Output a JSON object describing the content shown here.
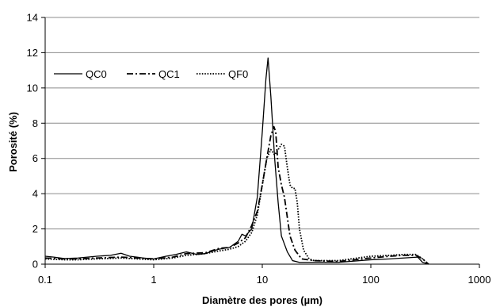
{
  "chart_data": {
    "type": "line",
    "xlabel": "Diamètre des pores (µm)",
    "ylabel": "Porosité (%)",
    "x_scale": "log",
    "xlim": [
      0.1,
      1000
    ],
    "ylim": [
      0,
      14
    ],
    "x_ticks": [
      "0.1",
      "1",
      "10",
      "100",
      "1000"
    ],
    "y_ticks": [
      "0",
      "2",
      "4",
      "6",
      "8",
      "10",
      "12",
      "14"
    ],
    "grid": "horizontal",
    "legend_position": "top-left",
    "series": [
      {
        "name": "QC0",
        "style": "solid",
        "color": "#000000",
        "points": [
          [
            0.1,
            0.45
          ],
          [
            0.12,
            0.4
          ],
          [
            0.15,
            0.32
          ],
          [
            0.2,
            0.35
          ],
          [
            0.3,
            0.45
          ],
          [
            0.4,
            0.5
          ],
          [
            0.5,
            0.62
          ],
          [
            0.6,
            0.45
          ],
          [
            0.7,
            0.4
          ],
          [
            0.8,
            0.35
          ],
          [
            1,
            0.3
          ],
          [
            1.3,
            0.45
          ],
          [
            1.6,
            0.55
          ],
          [
            2,
            0.7
          ],
          [
            2.5,
            0.55
          ],
          [
            3,
            0.6
          ],
          [
            3.5,
            0.75
          ],
          [
            4,
            0.85
          ],
          [
            5,
            0.95
          ],
          [
            6,
            1.3
          ],
          [
            6.5,
            1.7
          ],
          [
            7,
            1.6
          ],
          [
            8,
            2.0
          ],
          [
            9,
            3.8
          ],
          [
            10,
            7.5
          ],
          [
            10.8,
            10.5
          ],
          [
            11.3,
            11.7
          ],
          [
            12,
            9.5
          ],
          [
            13,
            6.0
          ],
          [
            14,
            3.5
          ],
          [
            15,
            1.6
          ],
          [
            17,
            0.7
          ],
          [
            19,
            0.2
          ],
          [
            22,
            0.1
          ],
          [
            30,
            0.1
          ],
          [
            50,
            0.1
          ],
          [
            100,
            0.25
          ],
          [
            150,
            0.3
          ],
          [
            200,
            0.35
          ],
          [
            270,
            0.4
          ],
          [
            300,
            0.1
          ],
          [
            340,
            0
          ]
        ]
      },
      {
        "name": "QC1",
        "style": "dashdot",
        "color": "#000000",
        "points": [
          [
            0.1,
            0.35
          ],
          [
            0.15,
            0.3
          ],
          [
            0.2,
            0.3
          ],
          [
            0.3,
            0.35
          ],
          [
            0.5,
            0.4
          ],
          [
            0.7,
            0.35
          ],
          [
            1,
            0.3
          ],
          [
            1.5,
            0.4
          ],
          [
            2,
            0.6
          ],
          [
            3,
            0.65
          ],
          [
            4,
            0.9
          ],
          [
            5,
            0.95
          ],
          [
            6,
            1.2
          ],
          [
            7,
            1.5
          ],
          [
            8,
            2.2
          ],
          [
            9,
            3.0
          ],
          [
            10,
            4.5
          ],
          [
            11,
            6.0
          ],
          [
            12,
            7.3
          ],
          [
            12.8,
            7.8
          ],
          [
            13.3,
            7.5
          ],
          [
            14,
            5.5
          ],
          [
            15,
            4.5
          ],
          [
            16,
            3.8
          ],
          [
            18,
            1.6
          ],
          [
            20,
            0.8
          ],
          [
            23,
            0.3
          ],
          [
            30,
            0.2
          ],
          [
            50,
            0.15
          ],
          [
            100,
            0.35
          ],
          [
            150,
            0.45
          ],
          [
            200,
            0.5
          ],
          [
            260,
            0.5
          ],
          [
            300,
            0.3
          ],
          [
            340,
            0
          ]
        ]
      },
      {
        "name": "QF0",
        "style": "dotted",
        "color": "#000000",
        "points": [
          [
            0.1,
            0.3
          ],
          [
            0.15,
            0.25
          ],
          [
            0.2,
            0.25
          ],
          [
            0.3,
            0.3
          ],
          [
            0.5,
            0.35
          ],
          [
            0.7,
            0.3
          ],
          [
            1,
            0.25
          ],
          [
            1.5,
            0.35
          ],
          [
            2,
            0.5
          ],
          [
            3,
            0.6
          ],
          [
            4,
            0.75
          ],
          [
            5,
            0.85
          ],
          [
            6,
            1.0
          ],
          [
            7,
            1.3
          ],
          [
            8,
            1.8
          ],
          [
            9,
            2.8
          ],
          [
            10,
            4.5
          ],
          [
            11,
            6.0
          ],
          [
            12,
            6.5
          ],
          [
            13,
            6.2
          ],
          [
            14,
            6.5
          ],
          [
            15,
            6.8
          ],
          [
            16,
            6.7
          ],
          [
            17,
            5.5
          ],
          [
            18,
            4.5
          ],
          [
            19,
            4.3
          ],
          [
            20,
            4.3
          ],
          [
            21,
            3.5
          ],
          [
            22,
            2.0
          ],
          [
            24,
            0.8
          ],
          [
            27,
            0.3
          ],
          [
            30,
            0.2
          ],
          [
            50,
            0.2
          ],
          [
            100,
            0.45
          ],
          [
            150,
            0.5
          ],
          [
            200,
            0.55
          ],
          [
            260,
            0.55
          ],
          [
            300,
            0.3
          ],
          [
            340,
            0
          ]
        ]
      }
    ]
  }
}
